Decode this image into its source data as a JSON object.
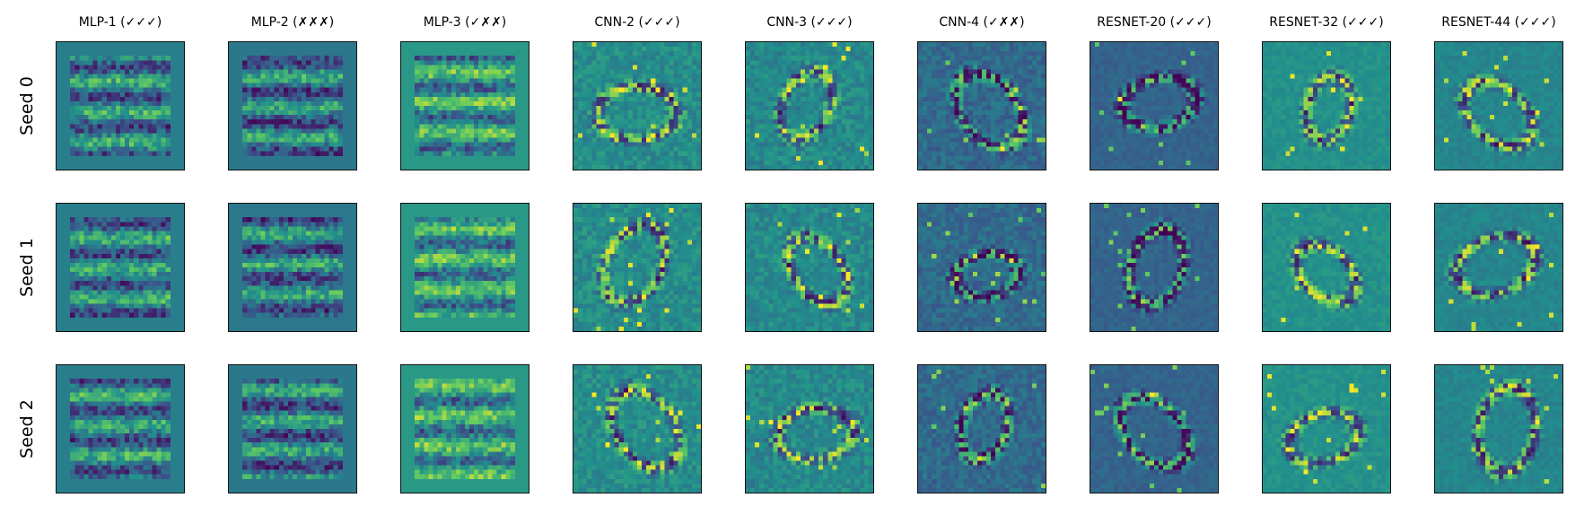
{
  "columns": [
    {
      "label": "MLP-1 (✓✓✓)"
    },
    {
      "label": "MLP-2 (✗✗✗)"
    },
    {
      "label": "MLP-3 (✓✗✗)"
    },
    {
      "label": "CNN-2 (✓✓✓)"
    },
    {
      "label": "CNN-3 (✓✓✓)"
    },
    {
      "label": "CNN-4 (✓✗✗)"
    },
    {
      "label": "RESNET-20 (✓✓✓)"
    },
    {
      "label": "RESNET-32 (✓✓✓)"
    },
    {
      "label": "RESNET-44 (✓✓✓)"
    }
  ],
  "rows": [
    {
      "label": "Seed 0"
    },
    {
      "label": "Seed 1"
    },
    {
      "label": "Seed 2"
    }
  ],
  "colormap": [
    "#440154",
    "#3b528b",
    "#21918c",
    "#5ec962",
    "#fde725"
  ],
  "background_color": "#2a7b8e"
}
